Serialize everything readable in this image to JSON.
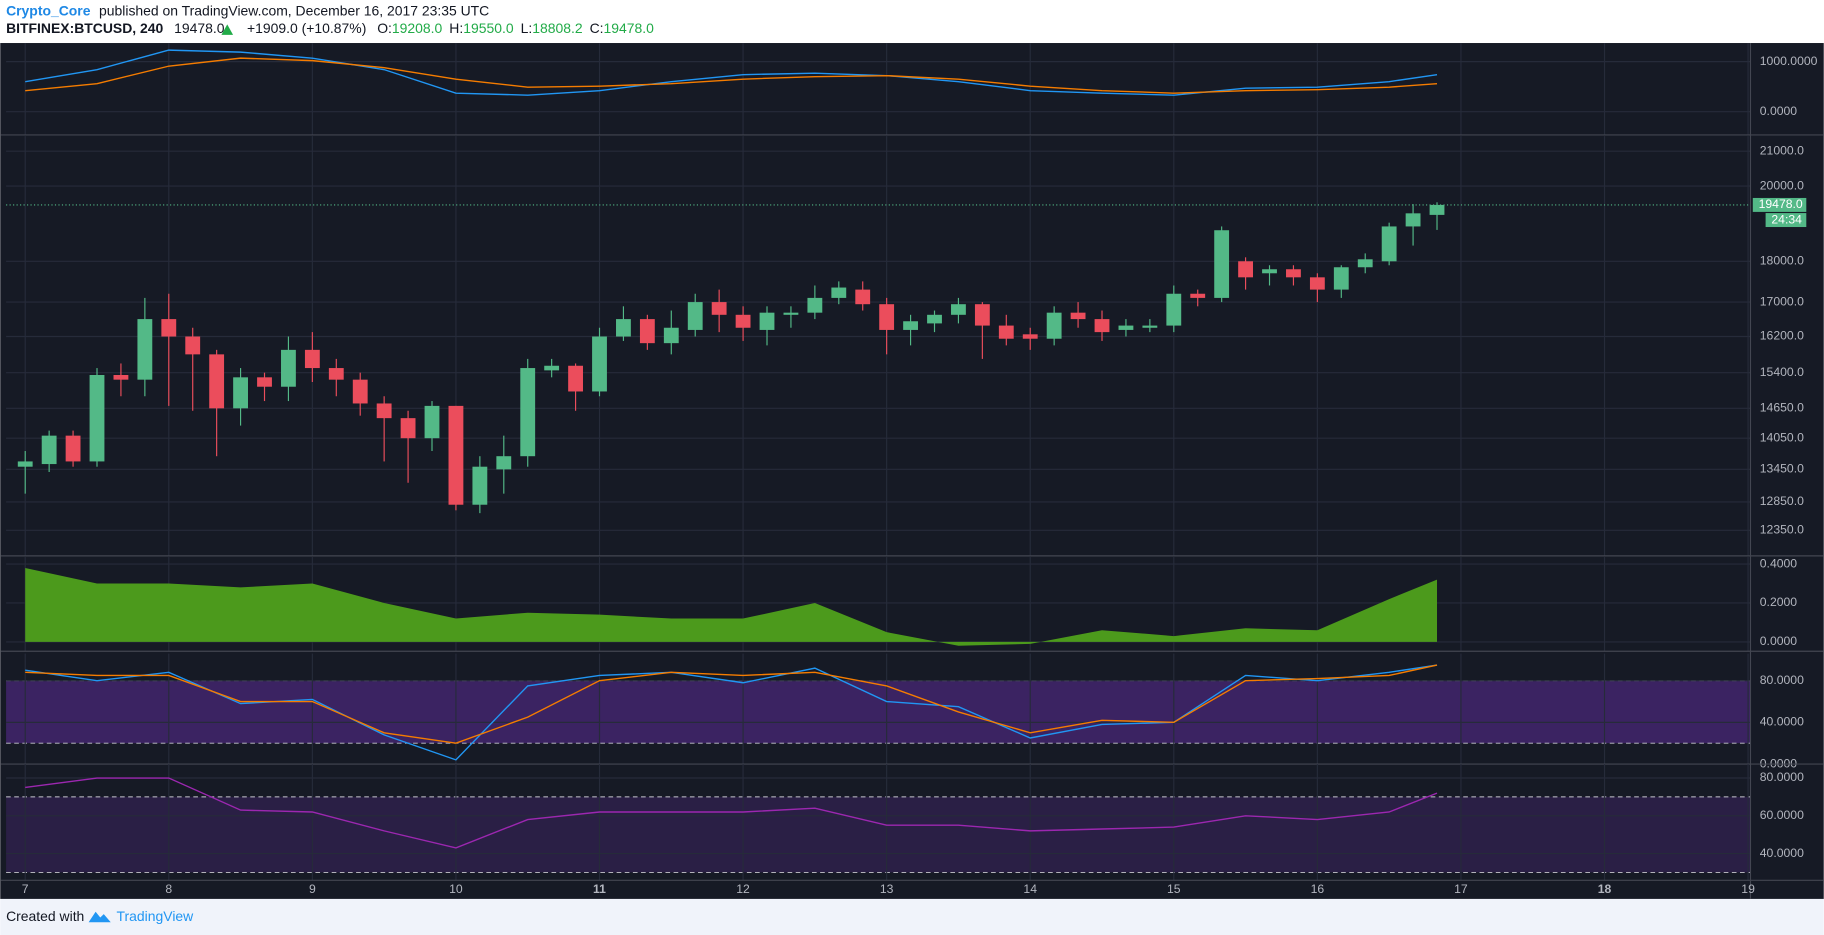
{
  "header": {
    "author": "Crypto_Core",
    "published": "published on TradingView.com, December 16, 2017 23:35 UTC",
    "symbol": "BITFINEX:BTCUSD, 240",
    "price": "19478.0",
    "change": "+1909.0 (+10.87%)",
    "ohlc": [
      {
        "label": "O:",
        "value": "19208.0"
      },
      {
        "label": "H:",
        "value": "19550.0"
      },
      {
        "label": "L:",
        "value": "18808.2"
      },
      {
        "label": "C:",
        "value": "19478.0"
      }
    ]
  },
  "footer": {
    "created": "Created with",
    "brand": "TradingView"
  },
  "chart_data": [
    {
      "type": "line",
      "ylim": [
        -465,
        1372
      ],
      "yticks": [
        {
          "value": 1000,
          "label": "1000.0000"
        },
        {
          "value": 0,
          "label": "0.0000"
        }
      ],
      "x": [
        0,
        3,
        6,
        9,
        12,
        15,
        18,
        21,
        24,
        27,
        30,
        33,
        36,
        39,
        42,
        45,
        48,
        51,
        54,
        57,
        59
      ],
      "series": [
        {
          "color": "#2196f3",
          "values": [
            600,
            840,
            1230,
            1190,
            1070,
            840,
            370,
            330,
            420,
            600,
            740,
            770,
            720,
            600,
            420,
            370,
            330,
            470,
            490,
            600,
            740
          ]
        },
        {
          "color": "#f57c00",
          "values": [
            420,
            560,
            910,
            1070,
            1020,
            880,
            650,
            490,
            510,
            560,
            650,
            700,
            720,
            650,
            510,
            420,
            370,
            420,
            440,
            490,
            560
          ]
        }
      ]
    },
    {
      "type": "candlestick",
      "log": true,
      "ylim": [
        11915,
        21450
      ],
      "yticks": [
        {
          "value": 21000,
          "label": "21000.0"
        },
        {
          "value": 20000,
          "label": "20000.0"
        },
        {
          "value": 18000,
          "label": "18000.0"
        },
        {
          "value": 17000,
          "label": "17000.0"
        },
        {
          "value": 16200,
          "label": "16200.0"
        },
        {
          "value": 15400,
          "label": "15400.0"
        },
        {
          "value": 14650,
          "label": "14650.0"
        },
        {
          "value": 14050,
          "label": "14050.0"
        },
        {
          "value": 13450,
          "label": "13450.0"
        },
        {
          "value": 12850,
          "label": "12850.0"
        },
        {
          "value": 12350,
          "label": "12350.0"
        }
      ],
      "up_color": "#53b987",
      "down_color": "#eb4d5c",
      "open": [
        13500,
        13550,
        14100,
        13600,
        15350,
        15250,
        16600,
        16200,
        15800,
        14650,
        15300,
        15100,
        15900,
        15500,
        15250,
        14750,
        14450,
        14050,
        14700,
        12800,
        13450,
        13700,
        15450,
        15550,
        15000,
        16200,
        16600,
        16050,
        16350,
        17000,
        16700,
        16350,
        16700,
        16750,
        17100,
        17300,
        16950,
        16350,
        16500,
        16700,
        16950,
        16450,
        16250,
        16150,
        16750,
        16600,
        16350,
        16400,
        16450,
        17200,
        17100,
        18000,
        17700,
        17800,
        17600,
        17300,
        17850,
        18000,
        18900,
        19208
      ],
      "high": [
        13800,
        14200,
        14200,
        15500,
        15600,
        17100,
        17200,
        16400,
        15900,
        15500,
        15400,
        16200,
        16300,
        15700,
        15400,
        14900,
        14600,
        14800,
        14700,
        13700,
        14100,
        15700,
        15700,
        15600,
        16400,
        16900,
        16700,
        16800,
        17200,
        17300,
        16900,
        16900,
        16900,
        17400,
        17500,
        17500,
        17100,
        16700,
        16800,
        17100,
        17000,
        16700,
        16400,
        16900,
        17000,
        16800,
        16600,
        16600,
        17400,
        17300,
        18900,
        18100,
        17900,
        17900,
        17700,
        17900,
        18200,
        19000,
        19500,
        19550
      ],
      "low": [
        13000,
        13400,
        13500,
        13500,
        14900,
        14900,
        14700,
        14600,
        13700,
        14300,
        14800,
        14800,
        15200,
        14900,
        14500,
        13600,
        13200,
        13800,
        12700,
        12650,
        13000,
        13500,
        15300,
        14600,
        14900,
        16100,
        15900,
        15800,
        16200,
        16300,
        16100,
        16000,
        16400,
        16600,
        16950,
        16800,
        15800,
        16000,
        16300,
        16500,
        15700,
        16000,
        15900,
        16000,
        16400,
        16100,
        16200,
        16300,
        16300,
        16900,
        17000,
        17300,
        17400,
        17400,
        17000,
        17100,
        17700,
        17900,
        18400,
        18808.2
      ],
      "close": [
        13600,
        14100,
        13600,
        15350,
        15250,
        16600,
        16200,
        15800,
        14650,
        15300,
        15100,
        15900,
        15500,
        15250,
        14750,
        14450,
        14050,
        14700,
        12800,
        13500,
        13700,
        15500,
        15550,
        15000,
        16200,
        16600,
        16050,
        16400,
        17000,
        16700,
        16400,
        16750,
        16750,
        17100,
        17350,
        16950,
        16350,
        16550,
        16700,
        16950,
        16450,
        16150,
        16150,
        16750,
        16600,
        16300,
        16450,
        16450,
        17200,
        17100,
        18800,
        17600,
        17800,
        17600,
        17300,
        17850,
        18050,
        18900,
        19250,
        19478
      ],
      "last_price": {
        "value": 19478,
        "label": "19478.0"
      },
      "countdown": "24:34"
    },
    {
      "type": "area",
      "ylim": [
        -0.048,
        0.436
      ],
      "yticks": [
        {
          "value": 0.4,
          "label": "0.4000"
        },
        {
          "value": 0.2,
          "label": "0.2000"
        },
        {
          "value": 0,
          "label": "0.0000"
        }
      ],
      "x": [
        0,
        3,
        6,
        9,
        12,
        15,
        18,
        21,
        24,
        27,
        30,
        33,
        36,
        39,
        42,
        45,
        48,
        51,
        54,
        57,
        59
      ],
      "series": [
        {
          "color": "#4c9a1c",
          "values": [
            0.38,
            0.3,
            0.3,
            0.28,
            0.3,
            0.2,
            0.12,
            0.15,
            0.14,
            0.12,
            0.12,
            0.2,
            0.05,
            -0.02,
            -0.01,
            0.06,
            0.03,
            0.07,
            0.06,
            0.22,
            0.32
          ]
        }
      ]
    },
    {
      "type": "line",
      "ylim": [
        0,
        106
      ],
      "band": [
        20,
        80
      ],
      "band_color": "#3b2362",
      "yticks": [
        {
          "value": 80,
          "label": "80.0000"
        },
        {
          "value": 40,
          "label": "40.0000"
        },
        {
          "value": 0,
          "label": "0.0000"
        }
      ],
      "x": [
        0,
        3,
        6,
        9,
        12,
        15,
        18,
        21,
        24,
        27,
        30,
        33,
        36,
        39,
        42,
        45,
        48,
        51,
        54,
        57,
        59
      ],
      "series": [
        {
          "color": "#2196f3",
          "values": [
            90,
            80,
            88,
            58,
            62,
            28,
            4,
            75,
            85,
            88,
            78,
            92,
            60,
            55,
            25,
            38,
            40,
            85,
            80,
            88,
            95
          ]
        },
        {
          "color": "#f57c00",
          "values": [
            88,
            85,
            85,
            60,
            60,
            30,
            20,
            45,
            80,
            88,
            85,
            88,
            75,
            50,
            30,
            42,
            40,
            80,
            82,
            85,
            95
          ]
        }
      ]
    },
    {
      "type": "line",
      "ylim": [
        25.8,
        87.4
      ],
      "band": [
        30,
        70
      ],
      "band_color": "#2a1f45",
      "yticks": [
        {
          "value": 80,
          "label": "80.0000"
        },
        {
          "value": 60,
          "label": "60.0000"
        },
        {
          "value": 40,
          "label": "40.0000"
        }
      ],
      "x": [
        0,
        3,
        6,
        9,
        12,
        15,
        18,
        21,
        24,
        27,
        30,
        33,
        36,
        39,
        42,
        45,
        48,
        51,
        54,
        57,
        59
      ],
      "series": [
        {
          "color": "#9c27b0",
          "values": [
            75,
            80,
            80,
            63,
            62,
            52,
            43,
            58,
            62,
            62,
            62,
            64,
            55,
            55,
            52,
            53,
            54,
            60,
            58,
            62,
            72
          ]
        }
      ],
      "xlim": [
        -0.8,
        72.1
      ],
      "xticks": [
        {
          "value": 0,
          "label": "7"
        },
        {
          "value": 6,
          "label": "8"
        },
        {
          "value": 12,
          "label": "9"
        },
        {
          "value": 18,
          "label": "10"
        },
        {
          "value": 24,
          "label": "11",
          "bold": true
        },
        {
          "value": 30,
          "label": "12"
        },
        {
          "value": 36,
          "label": "13"
        },
        {
          "value": 42,
          "label": "14"
        },
        {
          "value": 48,
          "label": "15"
        },
        {
          "value": 54,
          "label": "16"
        },
        {
          "value": 60,
          "label": "17"
        },
        {
          "value": 66,
          "label": "18",
          "bold": true
        },
        {
          "value": 72,
          "label": "19"
        }
      ]
    }
  ]
}
